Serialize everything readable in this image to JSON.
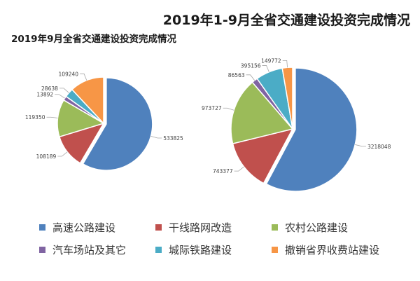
{
  "title": "2019年1-9月全省交通建设投资完成情况",
  "subtitle": "2019年9月全省交通建设投资完成情况",
  "chart_data": [
    {
      "type": "pie",
      "title": "2019年9月全省交通建设投资完成情况",
      "categories": [
        "高速公路建设",
        "干线路网改造",
        "农村公路建设",
        "汽车场站及其它",
        "城际铁路建设",
        "撤销省界收费站建设"
      ],
      "values": [
        533825,
        108189,
        119350,
        13892,
        28638,
        109240
      ],
      "colors": [
        "#4f81bd",
        "#c0504d",
        "#9bbb59",
        "#8064a2",
        "#4bacc6",
        "#f79646"
      ]
    },
    {
      "type": "pie",
      "title": "2019年1-9月全省交通建设投资完成情况",
      "categories": [
        "高速公路建设",
        "干线路网改造",
        "农村公路建设",
        "汽车场站及其它",
        "城际铁路建设",
        "撤销省界收费站建设"
      ],
      "values": [
        3218048,
        743377,
        973727,
        86563,
        395156,
        149772
      ],
      "colors": [
        "#4f81bd",
        "#c0504d",
        "#9bbb59",
        "#8064a2",
        "#4bacc6",
        "#f79646"
      ]
    }
  ],
  "legend": [
    {
      "label": "高速公路建设",
      "color": "#4f81bd"
    },
    {
      "label": "干线路网改造",
      "color": "#c0504d"
    },
    {
      "label": "农村公路建设",
      "color": "#9bbb59"
    },
    {
      "label": "汽车场站及其它",
      "color": "#8064a2"
    },
    {
      "label": "城际铁路建设",
      "color": "#4bacc6"
    },
    {
      "label": "撤销省界收费站建设",
      "color": "#f79646"
    }
  ]
}
